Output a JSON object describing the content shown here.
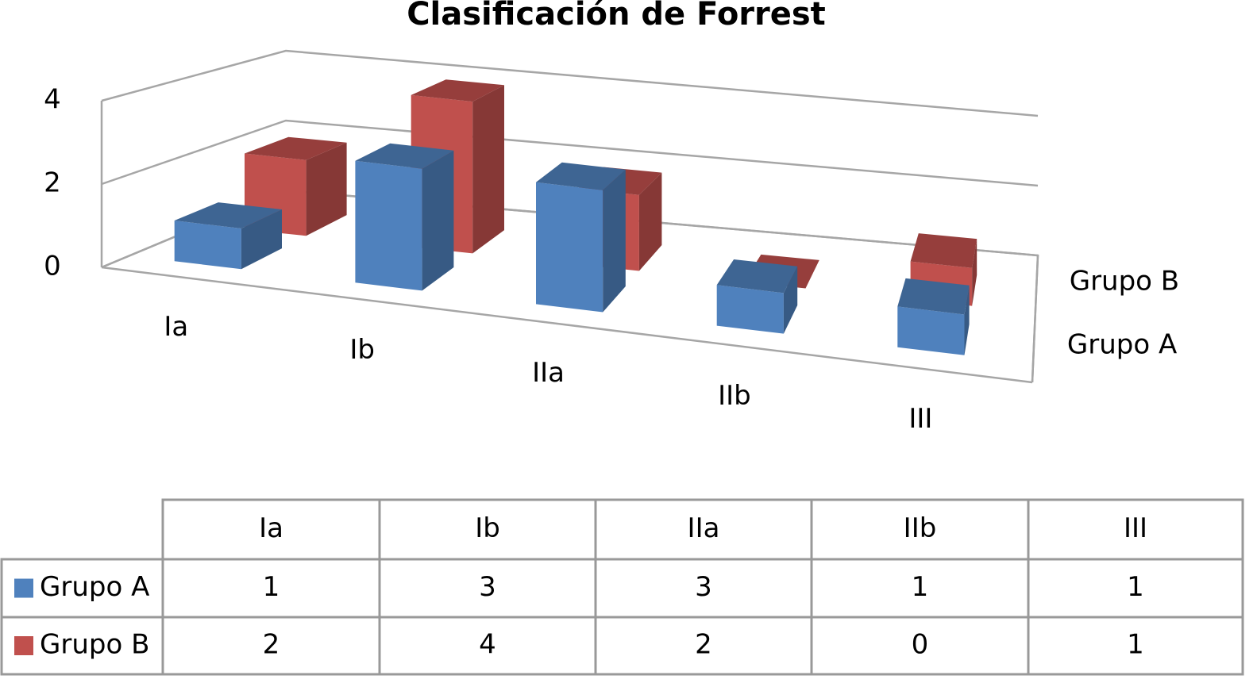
{
  "chart_data": {
    "type": "bar3d",
    "title": "Clasificación de Forrest",
    "categories": [
      "Ia",
      "Ib",
      "IIa",
      "IIb",
      "III"
    ],
    "series": [
      {
        "name": "Grupo A",
        "color": "#4f81bd",
        "values": [
          1,
          3,
          3,
          1,
          1
        ]
      },
      {
        "name": "Grupo B",
        "color": "#c0504d",
        "values": [
          2,
          4,
          2,
          0,
          1
        ]
      }
    ],
    "ylim": [
      0,
      4
    ],
    "yticks": [
      0,
      2,
      4
    ],
    "grid": true
  }
}
